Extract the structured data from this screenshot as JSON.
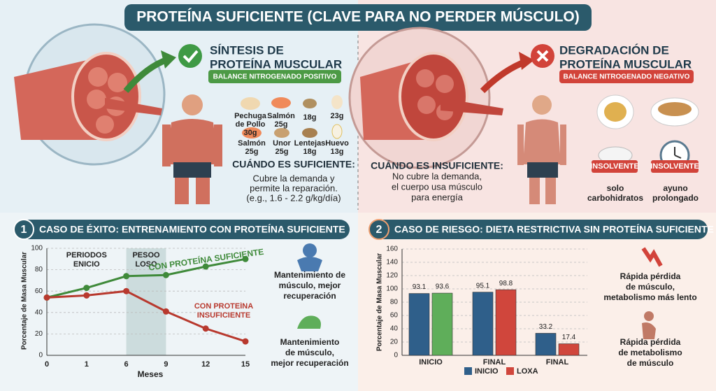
{
  "header": {
    "title": "PROTEÍNA SUFICIENTE (CLAVE PARA NO PERDER MÚSCULO)"
  },
  "synthesis": {
    "title": [
      "SÍNTESIS DE",
      "PROTEÍNA MUSCULAR"
    ],
    "badge": "BALANCE NITROGENADO POSITIVO",
    "foods": [
      [
        "Pechuga",
        "de Pollo",
        "30g"
      ],
      [
        "Salmón",
        "25g"
      ],
      [
        "18g"
      ],
      [
        "23g"
      ],
      [
        "Salmón",
        "25g"
      ],
      [
        "Unor",
        "25g"
      ],
      [
        "Lentejas",
        "18g"
      ],
      [
        "Huevo",
        "13g"
      ]
    ],
    "heading": "CUÁNDO ES SUFICIENTE:",
    "text": [
      "Cubre la demanda y",
      "permite la reparación.",
      "(e.g., 1.6 - 2.2 g/kg/día)"
    ]
  },
  "degradation": {
    "title": [
      "DEGRADACIÓN DE",
      "PROTEÍNA MUSCULAR"
    ],
    "badge": "BALANCE NITROGENADO NEGATIVO",
    "heading": "CUÁNDO ES INSUFICIENTE:",
    "text": [
      "No cubre la demanda,",
      "el cuerpo usa músculo",
      "para energía"
    ],
    "tags": [
      "INSOLVENTE",
      "INSOLVENTE"
    ],
    "captions": [
      [
        "solo",
        "carbohidratos"
      ],
      [
        "ayuno",
        "prolongado"
      ]
    ]
  },
  "chart_data": [
    {
      "type": "line",
      "number": "1",
      "title": "CASO DE ÉXITO: ENTRENAMIENTO CON PROTEÍNA SUFICIENTE",
      "categories": [
        "0",
        "1",
        "6",
        "9",
        "12",
        "15"
      ],
      "series": [
        {
          "name": "CON PROTEÍNA SUFICIENTE",
          "color": "#3f8a3a",
          "values": [
            54,
            63,
            74,
            75,
            83,
            90
          ]
        },
        {
          "name": "CON PROTEÍNA INSUFICIENTE",
          "color": "#b8392e",
          "values": [
            54,
            56,
            60,
            41,
            25,
            13
          ]
        }
      ],
      "ylim": [
        0,
        100
      ],
      "yticks": [
        0,
        20,
        40,
        60,
        80,
        100
      ],
      "grid": true,
      "y_label": "Porcentaje de Masa Muscular",
      "x_label": "Meses",
      "annotations": [
        [
          "PERIODOS",
          "ENICIO"
        ],
        [
          "PESOO",
          "LOSO"
        ]
      ],
      "notes": [
        [
          "Mantenimiento de",
          "músculo, mejor",
          "recuperación"
        ],
        [
          "Mantenimiento",
          "de músculo,",
          "mejor recuperación"
        ]
      ]
    },
    {
      "type": "bar",
      "number": "2",
      "title": "CASO DE RIESGO: DIETA RESTRICTIVA SIN PROTEÍNA SUFICIENTE",
      "categories": [
        "INICIO",
        "FINAL",
        "FINAL"
      ],
      "series": [
        {
          "name": "INICIO",
          "color": "#2f5f8a",
          "values": [
            93.1,
            95.1,
            33.2
          ]
        },
        {
          "name": "LOXA",
          "color": "#d0463c",
          "colors": [
            "#5fae5a",
            "#d0463c",
            "#d0463c"
          ],
          "values": [
            93.6,
            98.8,
            17.4
          ]
        }
      ],
      "ylim": [
        0,
        160
      ],
      "yticks": [
        0,
        20,
        40,
        60,
        80,
        100,
        120,
        140,
        160
      ],
      "grid": true,
      "y_label": "Porcentaje de Masa Muscular",
      "notes": [
        [
          "Rápida pérdida",
          "de músculo,",
          "metabolismo más lento"
        ],
        [
          "Rápida pérdida",
          "de metabolismo",
          "de músculo"
        ]
      ]
    }
  ]
}
